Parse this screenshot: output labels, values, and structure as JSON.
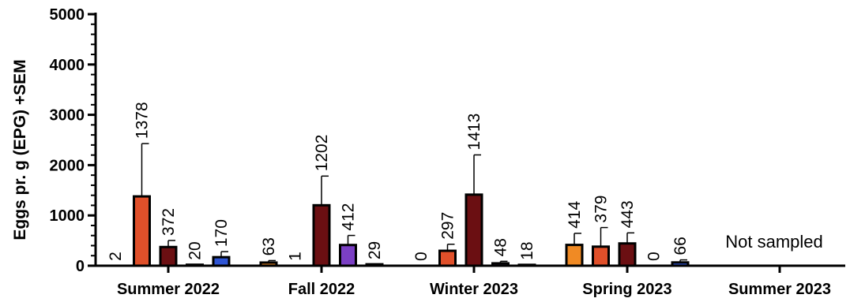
{
  "chart_data": {
    "type": "bar",
    "ylabel": "Eggs pr. g (EPG) +SEM",
    "ylim": [
      0,
      5000
    ],
    "yticks": [
      "0",
      "1000",
      "2000",
      "3000",
      "4000",
      "5000"
    ],
    "categories": [
      "Summer 2022",
      "Fall 2022",
      "Winter 2023",
      "Spring 2023",
      "Summer 2023"
    ],
    "groups": [
      {
        "category": "Summer 2022",
        "bars": [
          {
            "value": 2,
            "sem": 0,
            "label": "2",
            "color": "#F08A24"
          },
          {
            "value": 1378,
            "sem": 1050,
            "label": "1378",
            "color": "#E0502A"
          },
          {
            "value": 372,
            "sem": 130,
            "label": "372",
            "color": "#6B0F12"
          },
          {
            "value": 20,
            "sem": 0,
            "label": "20",
            "color": "#7B3FC4"
          },
          {
            "value": 170,
            "sem": 110,
            "label": "170",
            "color": "#2F55D4"
          }
        ]
      },
      {
        "category": "Fall 2022",
        "bars": [
          {
            "value": 63,
            "sem": 40,
            "label": "63",
            "color": "#F08A24"
          },
          {
            "value": 1,
            "sem": 0,
            "label": "1",
            "color": "#E0502A"
          },
          {
            "value": 1202,
            "sem": 580,
            "label": "1202",
            "color": "#6B0F12"
          },
          {
            "value": 412,
            "sem": 190,
            "label": "412",
            "color": "#7B3FC4"
          },
          {
            "value": 29,
            "sem": 0,
            "label": "29",
            "color": "#2F55D4"
          }
        ]
      },
      {
        "category": "Winter 2023",
        "bars": [
          {
            "value": 0,
            "sem": 0,
            "label": "0",
            "color": "#F08A24"
          },
          {
            "value": 297,
            "sem": 130,
            "label": "297",
            "color": "#E0502A"
          },
          {
            "value": 1413,
            "sem": 790,
            "label": "1413",
            "color": "#6B0F12"
          },
          {
            "value": 48,
            "sem": 40,
            "label": "48",
            "color": "#7B3FC4"
          },
          {
            "value": 18,
            "sem": 0,
            "label": "18",
            "color": "#2F55D4"
          }
        ]
      },
      {
        "category": "Spring 2023",
        "bars": [
          {
            "value": 414,
            "sem": 230,
            "label": "414",
            "color": "#F08A24"
          },
          {
            "value": 379,
            "sem": 380,
            "label": "379",
            "color": "#E0502A"
          },
          {
            "value": 443,
            "sem": 210,
            "label": "443",
            "color": "#6B0F12"
          },
          {
            "value": 0,
            "sem": 0,
            "label": "0",
            "color": "#7B3FC4"
          },
          {
            "value": 66,
            "sem": 50,
            "label": "66",
            "color": "#2F55D4"
          }
        ]
      },
      {
        "category": "Summer 2023",
        "bars": [],
        "note": "Not sampled"
      }
    ]
  }
}
